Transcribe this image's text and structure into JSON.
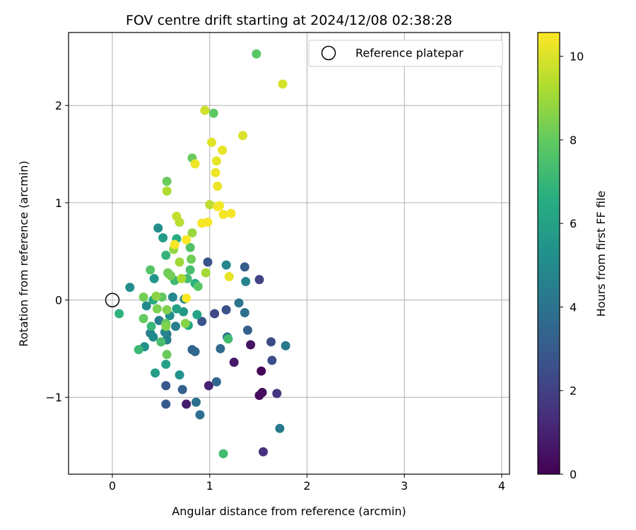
{
  "chart_data": {
    "type": "scatter",
    "title": "FOV centre drift starting at 2024/12/08 02:38:28",
    "xlabel": "Angular distance from reference (arcmin)",
    "ylabel": "Rotation from reference (arcmin)",
    "xlim": [
      -0.45,
      4.08
    ],
    "ylim": [
      -1.79,
      2.75
    ],
    "xticks": [
      0,
      1,
      2,
      3,
      4
    ],
    "yticks": [
      -1,
      0,
      1,
      2
    ],
    "xtick_labels": [
      "0",
      "1",
      "2",
      "3",
      "4"
    ],
    "ytick_labels": [
      "−1",
      "0",
      "1",
      "2"
    ],
    "grid": true,
    "legend": {
      "position": "top-right",
      "entries": [
        "Reference platepar"
      ]
    },
    "reference_point": {
      "x": 0,
      "y": 0
    },
    "colorbar": {
      "label": "Hours from first FF file",
      "min": 0,
      "max": 10.57,
      "ticks": [
        0,
        2,
        4,
        6,
        8,
        10
      ],
      "tick_labels": [
        "0",
        "2",
        "4",
        "6",
        "8",
        "10"
      ],
      "colormap": "viridis"
    },
    "points": [
      {
        "x": 1.53,
        "y": -0.73,
        "h": 0.05
      },
      {
        "x": 1.51,
        "y": -0.98,
        "h": 0.3
      },
      {
        "x": 1.54,
        "y": -0.95,
        "h": 0.35
      },
      {
        "x": 1.42,
        "y": -0.46,
        "h": 0.6
      },
      {
        "x": 1.25,
        "y": -0.64,
        "h": 0.7
      },
      {
        "x": 0.76,
        "y": -1.07,
        "h": 0.8
      },
      {
        "x": 0.99,
        "y": -0.88,
        "h": 1.0
      },
      {
        "x": 1.55,
        "y": -1.56,
        "h": 1.5
      },
      {
        "x": 1.69,
        "y": -0.96,
        "h": 1.6
      },
      {
        "x": 1.51,
        "y": 0.21,
        "h": 2.1
      },
      {
        "x": 1.05,
        "y": -0.14,
        "h": 2.3
      },
      {
        "x": 1.63,
        "y": -0.43,
        "h": 2.4
      },
      {
        "x": 1.64,
        "y": -0.62,
        "h": 2.5
      },
      {
        "x": 1.17,
        "y": -0.1,
        "h": 2.6
      },
      {
        "x": 0.98,
        "y": 0.39,
        "h": 2.7
      },
      {
        "x": 0.92,
        "y": -0.22,
        "h": 2.7
      },
      {
        "x": 0.55,
        "y": -0.88,
        "h": 2.9
      },
      {
        "x": 0.55,
        "y": -1.07,
        "h": 3.0
      },
      {
        "x": 1.36,
        "y": 0.34,
        "h": 3.1
      },
      {
        "x": 1.39,
        "y": -0.31,
        "h": 3.2
      },
      {
        "x": 0.72,
        "y": -0.92,
        "h": 3.3
      },
      {
        "x": 0.82,
        "y": -0.51,
        "h": 3.4
      },
      {
        "x": 0.85,
        "y": -0.53,
        "h": 3.5
      },
      {
        "x": 1.07,
        "y": -0.84,
        "h": 3.5
      },
      {
        "x": 1.11,
        "y": -0.5,
        "h": 3.6
      },
      {
        "x": 0.9,
        "y": -1.18,
        "h": 3.8
      },
      {
        "x": 0.86,
        "y": -1.05,
        "h": 3.9
      },
      {
        "x": 1.36,
        "y": -0.13,
        "h": 3.9
      },
      {
        "x": 1.18,
        "y": -0.38,
        "h": 4.0
      },
      {
        "x": 1.3,
        "y": -0.03,
        "h": 4.1
      },
      {
        "x": 1.78,
        "y": -0.47,
        "h": 4.2
      },
      {
        "x": 1.72,
        "y": -1.32,
        "h": 4.3
      },
      {
        "x": 0.56,
        "y": -0.35,
        "h": 4.3
      },
      {
        "x": 0.48,
        "y": -0.21,
        "h": 4.4
      },
      {
        "x": 0.39,
        "y": -0.34,
        "h": 4.5
      },
      {
        "x": 0.56,
        "y": -0.41,
        "h": 4.6
      },
      {
        "x": 0.65,
        "y": -0.27,
        "h": 4.5
      },
      {
        "x": 0.54,
        "y": -0.33,
        "h": 4.7
      },
      {
        "x": 0.62,
        "y": 0.03,
        "h": 4.8
      },
      {
        "x": 0.74,
        "y": 0.01,
        "h": 4.9
      },
      {
        "x": 0.35,
        "y": -0.06,
        "h": 5.0
      },
      {
        "x": 0.42,
        "y": -0.38,
        "h": 5.0
      },
      {
        "x": 0.47,
        "y": 0.74,
        "h": 5.1
      },
      {
        "x": 0.18,
        "y": 0.13,
        "h": 5.2
      },
      {
        "x": 0.59,
        "y": -0.16,
        "h": 5.2
      },
      {
        "x": 1.17,
        "y": 0.36,
        "h": 4.8
      },
      {
        "x": 1.37,
        "y": 0.19,
        "h": 4.7
      },
      {
        "x": 0.33,
        "y": -0.48,
        "h": 5.3
      },
      {
        "x": 0.69,
        "y": -0.77,
        "h": 5.4
      },
      {
        "x": 0.43,
        "y": 0.22,
        "h": 5.5
      },
      {
        "x": 0.73,
        "y": -0.12,
        "h": 5.6
      },
      {
        "x": 0.52,
        "y": 0.64,
        "h": 5.8
      },
      {
        "x": 0.44,
        "y": -0.75,
        "h": 5.9
      },
      {
        "x": 0.55,
        "y": -0.66,
        "h": 6.0
      },
      {
        "x": 0.66,
        "y": -0.09,
        "h": 6.0
      },
      {
        "x": 0.87,
        "y": -0.15,
        "h": 6.1
      },
      {
        "x": 0.78,
        "y": -0.26,
        "h": 6.3
      },
      {
        "x": 0.42,
        "y": 0.0,
        "h": 6.4
      },
      {
        "x": 0.85,
        "y": 0.17,
        "h": 6.6
      },
      {
        "x": 0.66,
        "y": 0.63,
        "h": 6.6
      },
      {
        "x": 0.07,
        "y": -0.14,
        "h": 6.8
      },
      {
        "x": 0.55,
        "y": 0.46,
        "h": 6.9
      },
      {
        "x": 0.4,
        "y": -0.27,
        "h": 7.0
      },
      {
        "x": 0.27,
        "y": -0.51,
        "h": 7.1
      },
      {
        "x": 0.64,
        "y": 0.2,
        "h": 7.1
      },
      {
        "x": 0.77,
        "y": 0.22,
        "h": 7.2
      },
      {
        "x": 1.14,
        "y": -1.58,
        "h": 7.3
      },
      {
        "x": 1.19,
        "y": -0.4,
        "h": 7.3
      },
      {
        "x": 0.5,
        "y": -0.43,
        "h": 7.4
      },
      {
        "x": 0.8,
        "y": 0.31,
        "h": 7.4
      },
      {
        "x": 0.58,
        "y": 0.27,
        "h": 7.5
      },
      {
        "x": 0.8,
        "y": 0.54,
        "h": 7.6
      },
      {
        "x": 0.88,
        "y": 0.14,
        "h": 7.7
      },
      {
        "x": 0.39,
        "y": 0.31,
        "h": 7.7
      },
      {
        "x": 1.48,
        "y": 2.53,
        "h": 7.8
      },
      {
        "x": 1.04,
        "y": 1.92,
        "h": 7.9
      },
      {
        "x": 0.51,
        "y": 0.03,
        "h": 7.9
      },
      {
        "x": 0.32,
        "y": -0.19,
        "h": 8.0
      },
      {
        "x": 0.55,
        "y": -0.24,
        "h": 8.0
      },
      {
        "x": 0.56,
        "y": -0.56,
        "h": 8.1
      },
      {
        "x": 0.56,
        "y": 1.22,
        "h": 8.1
      },
      {
        "x": 0.82,
        "y": 1.46,
        "h": 8.1
      },
      {
        "x": 0.81,
        "y": 0.42,
        "h": 8.2
      },
      {
        "x": 0.57,
        "y": 0.28,
        "h": 8.2
      },
      {
        "x": 0.6,
        "y": 0.25,
        "h": 8.3
      },
      {
        "x": 0.32,
        "y": 0.03,
        "h": 8.3
      },
      {
        "x": 0.46,
        "y": -0.09,
        "h": 8.4
      },
      {
        "x": 0.56,
        "y": -0.1,
        "h": 8.5
      },
      {
        "x": 0.55,
        "y": -0.27,
        "h": 8.5
      },
      {
        "x": 0.75,
        "y": -0.24,
        "h": 8.6
      },
      {
        "x": 0.45,
        "y": 0.04,
        "h": 8.7
      },
      {
        "x": 0.63,
        "y": 0.52,
        "h": 8.8
      },
      {
        "x": 0.82,
        "y": 0.69,
        "h": 8.9
      },
      {
        "x": 0.69,
        "y": 0.39,
        "h": 9.0
      },
      {
        "x": 0.96,
        "y": 0.28,
        "h": 9.1
      },
      {
        "x": 0.71,
        "y": 0.22,
        "h": 9.2
      },
      {
        "x": 0.56,
        "y": 1.12,
        "h": 9.3
      },
      {
        "x": 0.69,
        "y": 0.8,
        "h": 9.4
      },
      {
        "x": 1.0,
        "y": 0.98,
        "h": 9.5
      },
      {
        "x": 0.66,
        "y": 0.86,
        "h": 9.6
      },
      {
        "x": 0.95,
        "y": 1.95,
        "h": 9.8
      },
      {
        "x": 1.75,
        "y": 2.22,
        "h": 9.9
      },
      {
        "x": 1.34,
        "y": 1.69,
        "h": 10.0
      },
      {
        "x": 1.02,
        "y": 1.62,
        "h": 10.1
      },
      {
        "x": 1.13,
        "y": 1.54,
        "h": 10.2
      },
      {
        "x": 1.07,
        "y": 1.43,
        "h": 10.2
      },
      {
        "x": 1.06,
        "y": 1.31,
        "h": 10.3
      },
      {
        "x": 1.08,
        "y": 1.17,
        "h": 10.3
      },
      {
        "x": 0.85,
        "y": 1.4,
        "h": 10.3
      },
      {
        "x": 1.08,
        "y": 0.96,
        "h": 10.4
      },
      {
        "x": 1.1,
        "y": 0.97,
        "h": 10.4
      },
      {
        "x": 1.14,
        "y": 0.88,
        "h": 10.4
      },
      {
        "x": 1.22,
        "y": 0.89,
        "h": 10.4
      },
      {
        "x": 0.92,
        "y": 0.79,
        "h": 10.45
      },
      {
        "x": 0.98,
        "y": 0.8,
        "h": 10.45
      },
      {
        "x": 1.2,
        "y": 0.24,
        "h": 10.2
      },
      {
        "x": 0.64,
        "y": 0.57,
        "h": 10.5
      },
      {
        "x": 0.76,
        "y": 0.62,
        "h": 10.5
      },
      {
        "x": 0.76,
        "y": 0.02,
        "h": 10.55
      }
    ]
  }
}
